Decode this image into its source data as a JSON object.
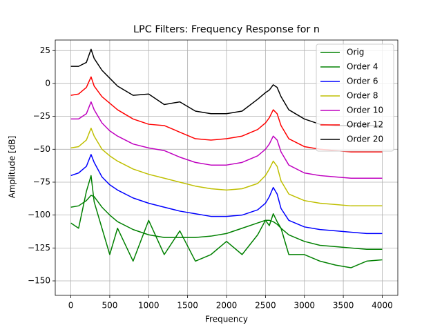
{
  "chart_data": {
    "type": "line",
    "title": "LPC Filters: Frequency Response for n",
    "x_label": "Frequency",
    "y_label": "Amplitude [dB]",
    "x": [
      0,
      100,
      200,
      260,
      300,
      400,
      500,
      600,
      800,
      1000,
      1200,
      1400,
      1600,
      1800,
      2000,
      2200,
      2400,
      2500,
      2550,
      2600,
      2650,
      2700,
      2800,
      3000,
      3200,
      3400,
      3600,
      3800,
      4000
    ],
    "series": [
      {
        "name": "Orig",
        "color": "#008000",
        "values": [
          -106,
          -110,
          -82,
          -70,
          -90,
          -110,
          -130,
          -110,
          -135,
          -104,
          -130,
          -112,
          -135,
          -130,
          -120,
          -130,
          -115,
          -104,
          -108,
          -99,
          -105,
          -110,
          -130,
          -130,
          -135,
          -138,
          -140,
          -135,
          -134
        ]
      },
      {
        "name": "Order 4",
        "color": "#008000",
        "values": [
          -94,
          -93,
          -89,
          -85,
          -86,
          -94,
          -100,
          -105,
          -111,
          -115,
          -117,
          -117,
          -117,
          -116,
          -114,
          -110,
          -106,
          -104,
          -104,
          -105,
          -107,
          -110,
          -115,
          -120,
          -123,
          -124,
          -125,
          -126,
          -126
        ]
      },
      {
        "name": "Order 6",
        "color": "#0000ff",
        "values": [
          -70,
          -68,
          -63,
          -54,
          -60,
          -71,
          -77,
          -81,
          -87,
          -91,
          -94,
          -97,
          -99,
          -101,
          -101,
          -100,
          -96,
          -91,
          -86,
          -79,
          -84,
          -95,
          -104,
          -109,
          -111,
          -112,
          -113,
          -114,
          -114
        ]
      },
      {
        "name": "Order 8",
        "color": "#bfbf00",
        "values": [
          -49,
          -48,
          -43,
          -34,
          -40,
          -50,
          -55,
          -59,
          -65,
          -69,
          -72,
          -75,
          -78,
          -80,
          -81,
          -80,
          -76,
          -70,
          -65,
          -59,
          -63,
          -74,
          -84,
          -89,
          -91,
          -92,
          -93,
          -93,
          -93
        ]
      },
      {
        "name": "Order 10",
        "color": "#bf00bf",
        "values": [
          -27,
          -27,
          -23,
          -14,
          -20,
          -30,
          -36,
          -40,
          -46,
          -49,
          -51,
          -56,
          -60,
          -62,
          -62,
          -60,
          -55,
          -50,
          -46,
          -40,
          -43,
          -52,
          -62,
          -68,
          -70,
          -71,
          -72,
          -72,
          -72
        ]
      },
      {
        "name": "Order 12",
        "color": "#ff0000",
        "values": [
          -9,
          -8,
          -3,
          5,
          -2,
          -10,
          -15,
          -20,
          -27,
          -31,
          -32,
          -37,
          -42,
          -43,
          -42,
          -40,
          -35,
          -30,
          -26,
          -20,
          -23,
          -32,
          -42,
          -48,
          -50,
          -51,
          -52,
          -52,
          -52
        ]
      },
      {
        "name": "Order 20",
        "color": "#000000",
        "values": [
          13,
          13,
          16,
          26,
          19,
          10,
          4,
          -2,
          -9,
          -8,
          -16,
          -14,
          -21,
          -23,
          -23,
          -21,
          -12,
          -7,
          -5,
          -1,
          -3,
          -10,
          -20,
          -27,
          -31,
          -32,
          -32,
          -32,
          -32
        ]
      }
    ],
    "xlim": [
      -200,
      4200
    ],
    "ylim": [
      -161,
      33
    ],
    "xticks": [
      0,
      500,
      1000,
      1500,
      2000,
      2500,
      3000,
      3500,
      4000
    ],
    "yticks": [
      {
        "value": -150,
        "label": "−150"
      },
      {
        "value": -125,
        "label": "−125"
      },
      {
        "value": -100,
        "label": "−100"
      },
      {
        "value": -75,
        "label": "−75"
      },
      {
        "value": -50,
        "label": "−50"
      },
      {
        "value": -25,
        "label": "−25"
      },
      0,
      25
    ],
    "grid": true,
    "legend": "upper right"
  }
}
